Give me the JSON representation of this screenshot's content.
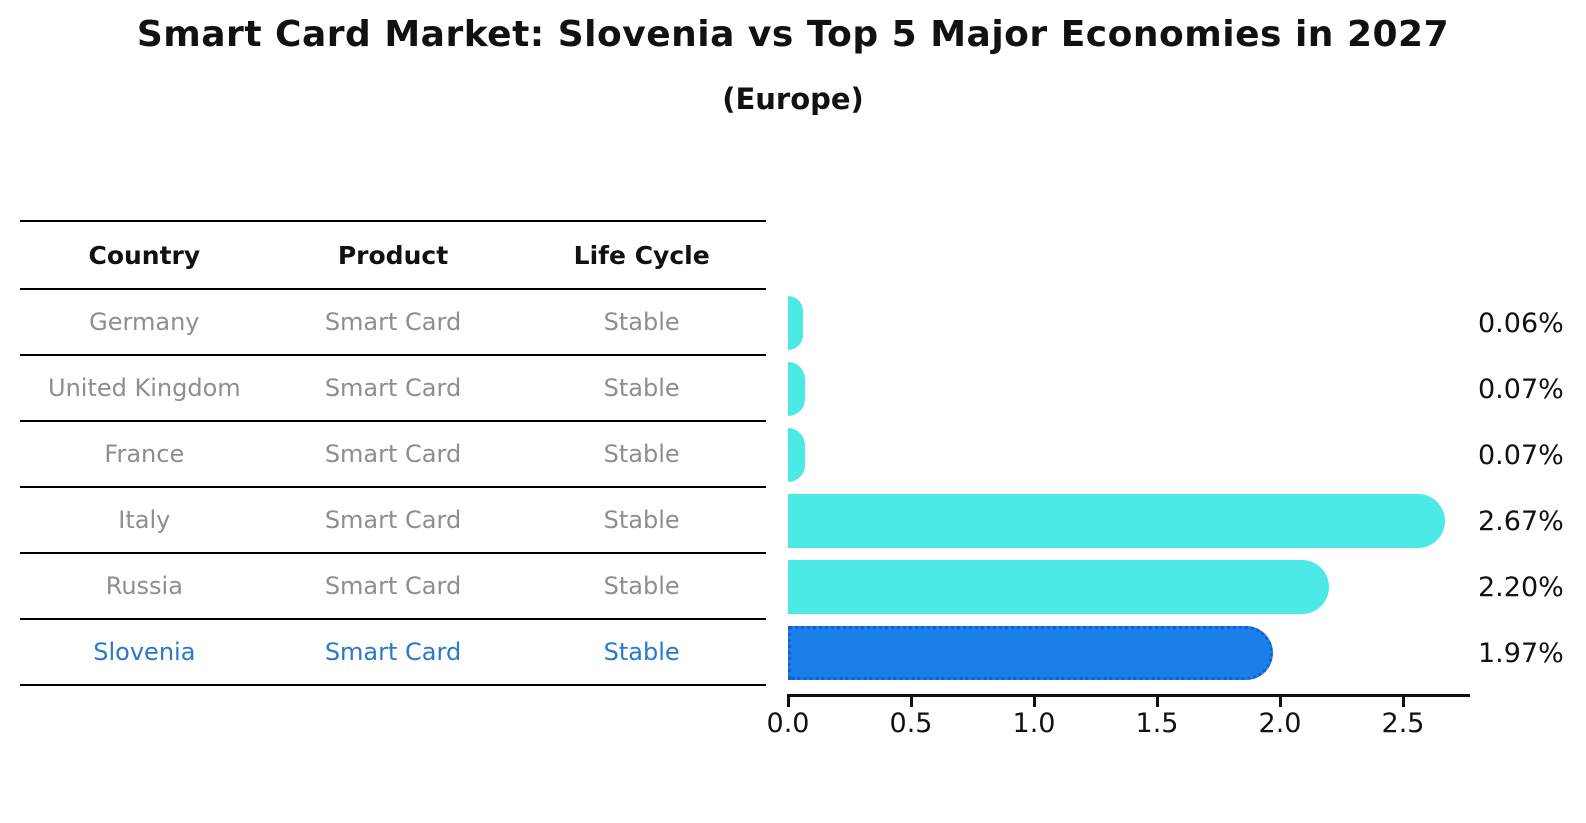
{
  "header": {
    "title": "Smart Card Market: Slovenia vs Top 5 Major Economies in 2027",
    "subtitle": "(Europe)"
  },
  "table": {
    "columns": [
      "Country",
      "Product",
      "Life Cycle"
    ],
    "rows": [
      {
        "country": "Germany",
        "product": "Smart Card",
        "life_cycle": "Stable"
      },
      {
        "country": "United Kingdom",
        "product": "Smart Card",
        "life_cycle": "Stable"
      },
      {
        "country": "France",
        "product": "Smart Card",
        "life_cycle": "Stable"
      },
      {
        "country": "Italy",
        "product": "Smart Card",
        "life_cycle": "Stable"
      },
      {
        "country": "Russia",
        "product": "Smart Card",
        "life_cycle": "Stable"
      },
      {
        "country": "Slovenia",
        "product": "Smart Card",
        "life_cycle": "Stable"
      }
    ]
  },
  "chart_data": {
    "type": "bar",
    "orientation": "horizontal",
    "title": "Smart Card Market: Slovenia vs Top 5 Major Economies in 2027",
    "subtitle": "(Europe)",
    "categories": [
      "Germany",
      "United Kingdom",
      "France",
      "Italy",
      "Russia",
      "Slovenia"
    ],
    "values": [
      0.06,
      0.07,
      0.07,
      2.67,
      2.2,
      1.97
    ],
    "labels": [
      "0.06%",
      "0.07%",
      "0.07%",
      "2.67%",
      "2.20%",
      "1.97%"
    ],
    "xticks": [
      "0.0",
      "0.5",
      "1.0",
      "1.5",
      "2.0",
      "2.5"
    ],
    "xtick_values": [
      0.0,
      0.5,
      1.0,
      1.5,
      2.0,
      2.5
    ],
    "xlim": [
      0,
      2.77
    ],
    "grid": false,
    "legend": false,
    "bar_color": "#4DE9E6",
    "highlight_index": 5,
    "highlight_color": "#1B7FEA",
    "highlight_border_color": "#135FD6",
    "highlight_text_color": "#2879CC",
    "row_text_color": "#8E8E8E"
  }
}
